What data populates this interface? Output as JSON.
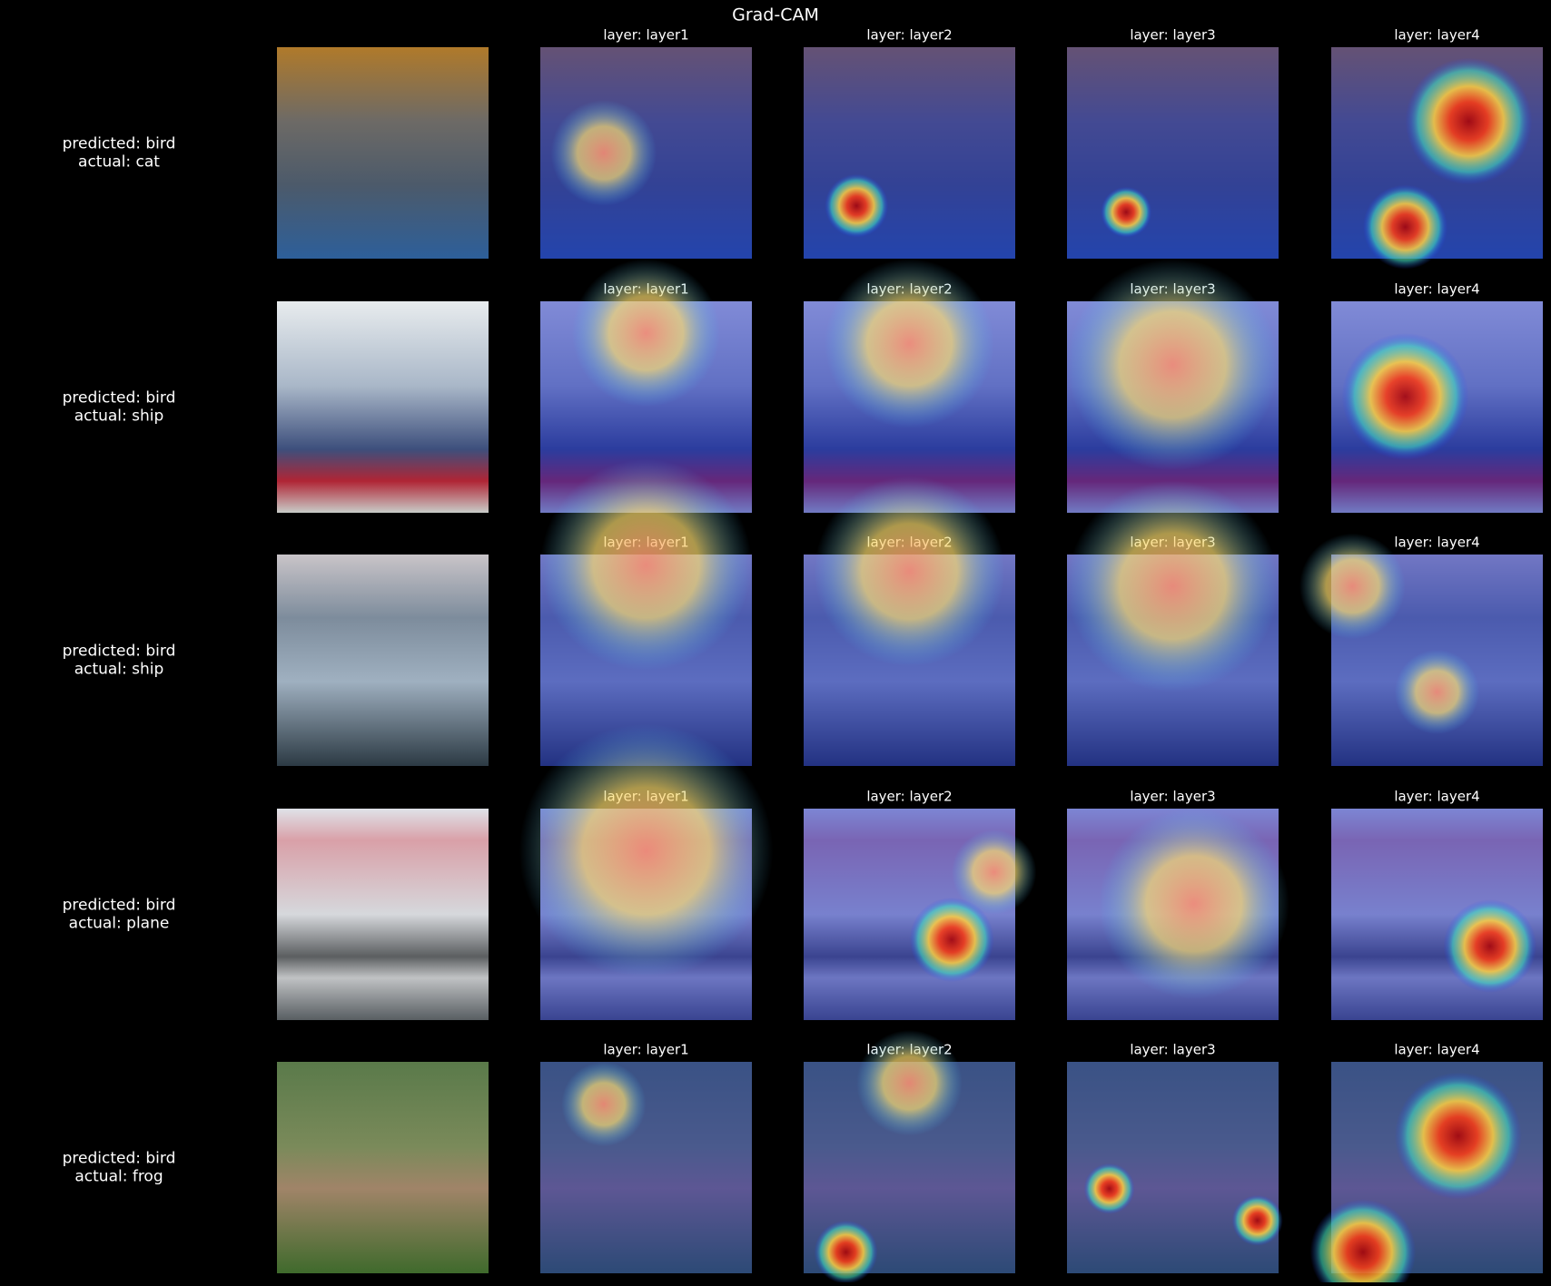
{
  "title": "Grad-CAM",
  "rows": [
    {
      "predicted": "predicted: bird",
      "actual": "actual: cat",
      "layers": [
        "layer: layer1",
        "layer: layer2",
        "layer: layer3",
        "layer: layer4"
      ]
    },
    {
      "predicted": "predicted: bird",
      "actual": "actual: ship",
      "layers": [
        "layer: layer1",
        "layer: layer2",
        "layer: layer3",
        "layer: layer4"
      ]
    },
    {
      "predicted": "predicted: bird",
      "actual": "actual: ship",
      "layers": [
        "layer: layer1",
        "layer: layer2",
        "layer: layer3",
        "layer: layer4"
      ]
    },
    {
      "predicted": "predicted: bird",
      "actual": "actual: plane",
      "layers": [
        "layer: layer1",
        "layer: layer2",
        "layer: layer3",
        "layer: layer4"
      ]
    },
    {
      "predicted": "predicted: bird",
      "actual": "actual: frog",
      "layers": [
        "layer: layer1",
        "layer: layer2",
        "layer: layer3",
        "layer: layer4"
      ]
    }
  ]
}
